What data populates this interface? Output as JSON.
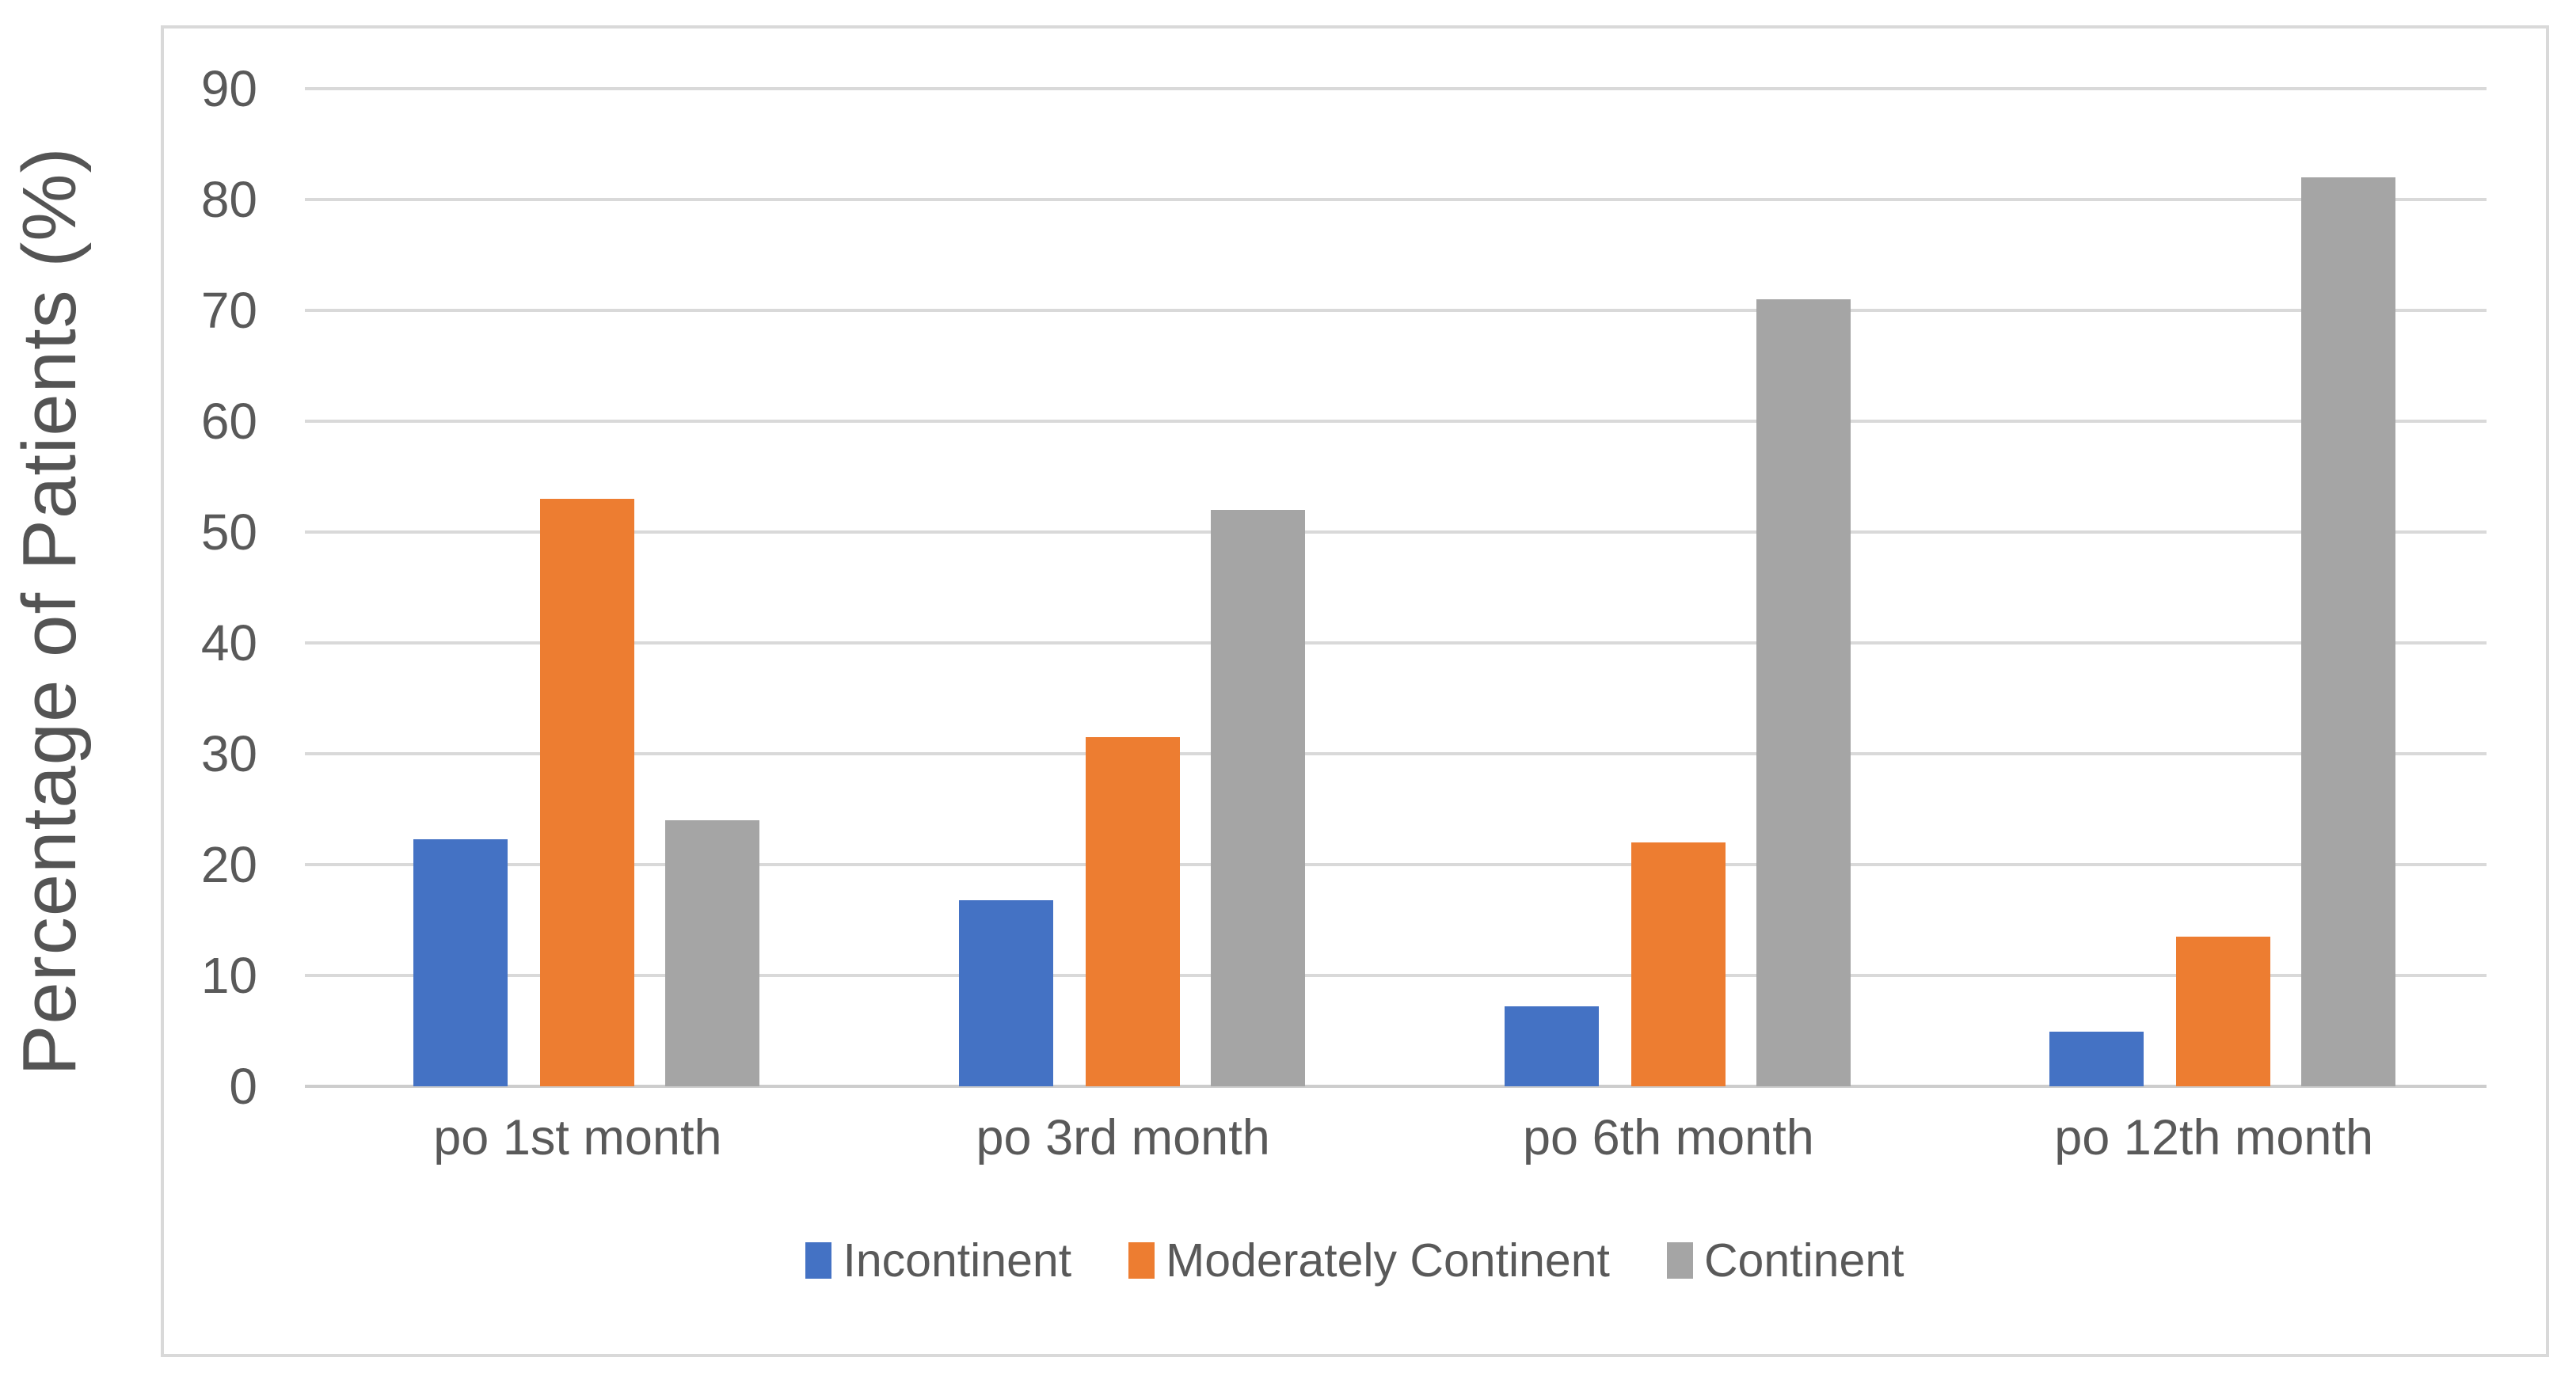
{
  "chart_data": {
    "type": "bar",
    "title": "",
    "xlabel": "",
    "ylabel": "Percentage of Patients (%)",
    "categories": [
      "po 1st month",
      "po 3rd month",
      "po 6th month",
      "po 12th month"
    ],
    "series": [
      {
        "name": "Incontinent",
        "color": "#4472C4",
        "values": [
          22.3,
          16.8,
          7.2,
          4.9
        ]
      },
      {
        "name": "Moderately Continent",
        "color": "#ED7D31",
        "values": [
          53.0,
          31.5,
          22.0,
          13.5
        ]
      },
      {
        "name": "Continent",
        "color": "#A5A5A5",
        "values": [
          24.0,
          52.0,
          71.0,
          82.0
        ]
      }
    ],
    "ylim": [
      0,
      90
    ],
    "yticks": [
      0,
      10,
      20,
      30,
      40,
      50,
      60,
      70,
      80,
      90
    ],
    "grid": true,
    "gridline_color": "#D9D9D9",
    "axis_text_color": "#595959",
    "frame_color": "#D9D9D9",
    "legend_position": "bottom"
  }
}
